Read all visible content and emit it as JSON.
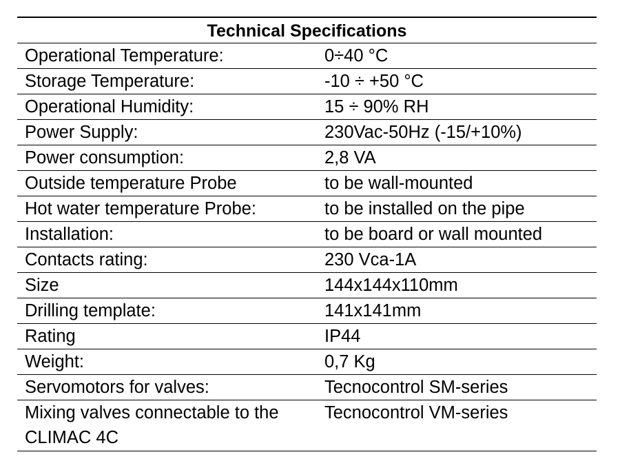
{
  "header": {
    "title": "Technical Specifications"
  },
  "table": {
    "rows": [
      [
        "Operational Temperature:",
        "0÷40 °C"
      ],
      [
        "Storage Temperature:",
        "-10 ÷ +50 °C"
      ],
      [
        "Operational Humidity:",
        "15 ÷ 90% RH"
      ],
      [
        "Power Supply:",
        "230Vac-50Hz (-15/+10%)"
      ],
      [
        "Power consumption:",
        "2,8 VA"
      ],
      [
        "Outside temperature Probe",
        "to be wall-mounted"
      ],
      [
        "Hot water temperature Probe:",
        "to be installed on the pipe"
      ],
      [
        "Installation:",
        "to be board or wall mounted"
      ],
      [
        "Contacts rating:",
        "230 Vca-1A"
      ],
      [
        "Size",
        "144x144x110mm"
      ],
      [
        "Drilling template:",
        "141x141mm"
      ],
      [
        "Rating",
        "IP44"
      ],
      [
        "Weight:",
        "0,7 Kg"
      ],
      [
        "Servomotors for valves:",
        "Tecnocontrol SM-series"
      ],
      [
        "Mixing valves connectable to the CLIMAC 4C",
        "Tecnocontrol VM-series"
      ]
    ]
  }
}
